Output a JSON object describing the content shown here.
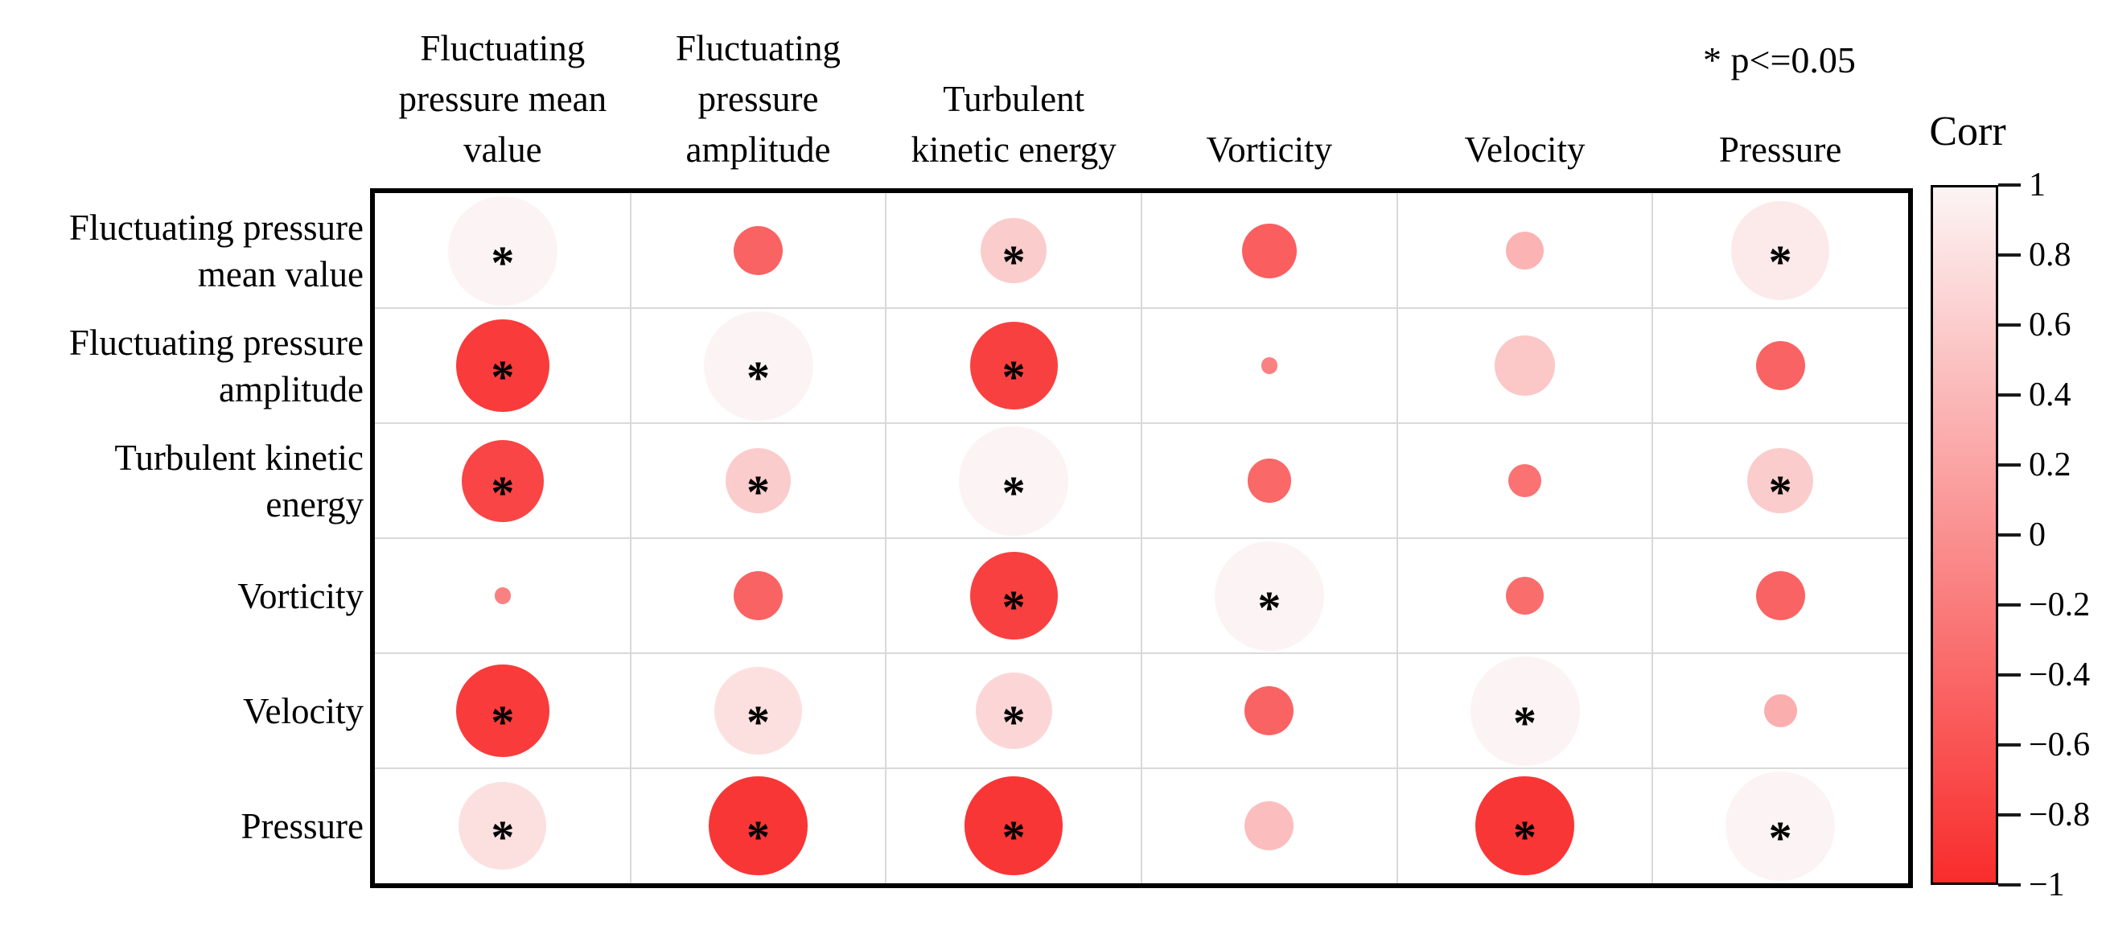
{
  "chart_data": {
    "type": "correlation-bubble-matrix",
    "title": "",
    "significance_note": "* p<=0.05",
    "variables": [
      "Fluctuating pressure mean value",
      "Fluctuating pressure amplitude",
      "Turbulent kinetic energy",
      "Vorticity",
      "Velocity",
      "Pressure"
    ],
    "column_headers": [
      "Fluctuating\npressure mean\nvalue",
      "Fluctuating\npressure\namplitude",
      "Turbulent\nkinetic energy",
      "Vorticity",
      "Velocity",
      "Pressure"
    ],
    "row_labels": [
      "Fluctuating pressure\nmean value",
      "Fluctuating pressure\namplitude",
      "Turbulent kinetic\nenergy",
      "Vorticity",
      "Velocity",
      "Pressure"
    ],
    "matrix": [
      {
        "row": "Fluctuating pressure mean value",
        "values": [
          1.0,
          -0.45,
          0.6,
          -0.5,
          0.35,
          0.9
        ],
        "significant": [
          true,
          false,
          true,
          false,
          false,
          true
        ]
      },
      {
        "row": "Fluctuating pressure amplitude",
        "values": [
          -0.85,
          1.0,
          -0.8,
          -0.15,
          0.55,
          -0.45
        ],
        "significant": [
          true,
          true,
          true,
          false,
          false,
          false
        ]
      },
      {
        "row": "Turbulent kinetic energy",
        "values": [
          -0.75,
          0.6,
          1.0,
          -0.4,
          -0.3,
          0.6
        ],
        "significant": [
          true,
          true,
          true,
          false,
          false,
          true
        ]
      },
      {
        "row": "Vorticity",
        "values": [
          -0.15,
          -0.45,
          -0.8,
          1.0,
          -0.35,
          -0.45
        ],
        "significant": [
          false,
          false,
          true,
          true,
          false,
          false
        ]
      },
      {
        "row": "Velocity",
        "values": [
          -0.85,
          0.8,
          0.7,
          -0.45,
          1.0,
          0.3
        ],
        "significant": [
          true,
          true,
          true,
          false,
          true,
          false
        ]
      },
      {
        "row": "Pressure",
        "values": [
          0.8,
          -0.9,
          -0.9,
          0.45,
          -0.9,
          1.0
        ],
        "significant": [
          true,
          true,
          true,
          false,
          true,
          true
        ]
      }
    ],
    "colorbar": {
      "title": "Corr",
      "min": -1,
      "max": 1,
      "tick_labels": [
        "1",
        "0.8",
        "0.6",
        "0.4",
        "0.2",
        "0",
        "−0.2",
        "−0.4",
        "−0.6",
        "−0.8",
        "−1"
      ],
      "color_positive_end": "#fcf4f4",
      "color_negative_end": "#f92c2c"
    },
    "style": {
      "gridline_color": "#d9d9d9",
      "border_color": "#000000",
      "asterisk_color": "#000000",
      "background": "#ffffff"
    }
  }
}
